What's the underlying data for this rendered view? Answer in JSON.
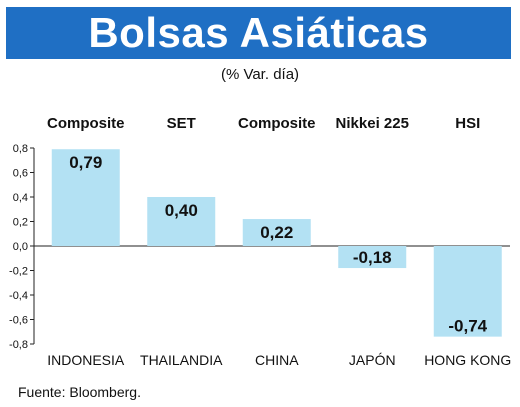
{
  "header": {
    "title": "Bolsas Asiáticas",
    "subtitle": "(% Var. día)"
  },
  "footer": {
    "source": "Fuente: Bloomberg."
  },
  "colors": {
    "title_bg": "#1f6fc4",
    "bar_fill": "#b3e1f3"
  },
  "chart_data": {
    "type": "bar",
    "index_names": [
      "Composite",
      "SET",
      "Composite",
      "Nikkei 225",
      "HSI"
    ],
    "categories": [
      "INDONESIA",
      "THAILANDIA",
      "CHINA",
      "JAPÓN",
      "HONG KONG"
    ],
    "values": [
      0.79,
      0.4,
      0.22,
      -0.18,
      -0.74
    ],
    "value_labels": [
      "0,79",
      "0,40",
      "0,22",
      "-0,18",
      "-0,74"
    ],
    "ylim": [
      -0.8,
      0.8
    ],
    "yticks": [
      0.8,
      0.6,
      0.4,
      0.2,
      0.0,
      -0.2,
      -0.4,
      -0.6,
      -0.8
    ],
    "ytick_labels": [
      "0,8",
      "0,6",
      "0,4",
      "0,2",
      "0,0",
      "-0,2",
      "-0,4",
      "-0,6",
      "-0,8"
    ],
    "grid": false,
    "legend": "none"
  }
}
